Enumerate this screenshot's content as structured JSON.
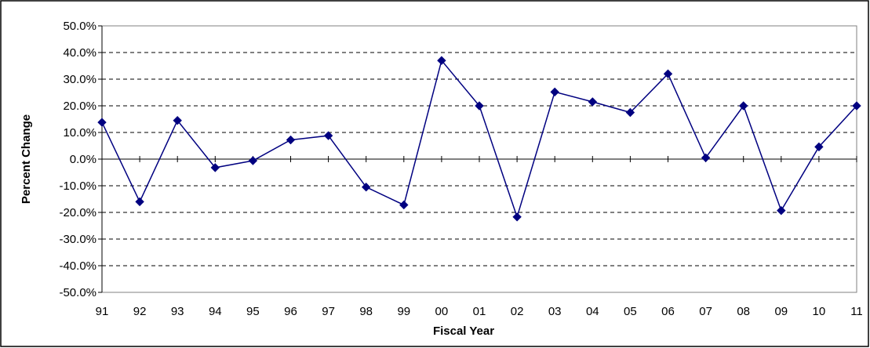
{
  "chart_data": {
    "type": "line",
    "title": "",
    "xlabel": "Fiscal Year",
    "ylabel": "Percent Change",
    "categories": [
      "91",
      "92",
      "93",
      "94",
      "95",
      "96",
      "97",
      "98",
      "99",
      "00",
      "01",
      "02",
      "03",
      "04",
      "05",
      "06",
      "07",
      "08",
      "09",
      "10",
      "11"
    ],
    "series": [
      {
        "values": [
          13.8,
          -16.0,
          14.5,
          -3.2,
          -0.6,
          7.2,
          8.8,
          -10.5,
          -17.2,
          37.0,
          20.0,
          -21.7,
          25.2,
          21.5,
          17.5,
          32.0,
          0.5,
          20.0,
          -19.3,
          4.6,
          20.0
        ]
      }
    ],
    "ylim": [
      -50,
      50
    ],
    "yticks": [
      50,
      40,
      30,
      20,
      10,
      0,
      -10,
      -20,
      -30,
      -40,
      -50
    ],
    "ytick_labels": [
      "50.0%",
      "40.0%",
      "30.0%",
      "20.0%",
      "10.0%",
      "0.0%",
      "-10.0%",
      "-20.0%",
      "-30.0%",
      "-40.0%",
      "-50.0%"
    ],
    "grid": "horizontal dashed",
    "legend": "none",
    "colors": {
      "series": "#000080",
      "grid": "#000000",
      "frame": "#808080"
    }
  }
}
